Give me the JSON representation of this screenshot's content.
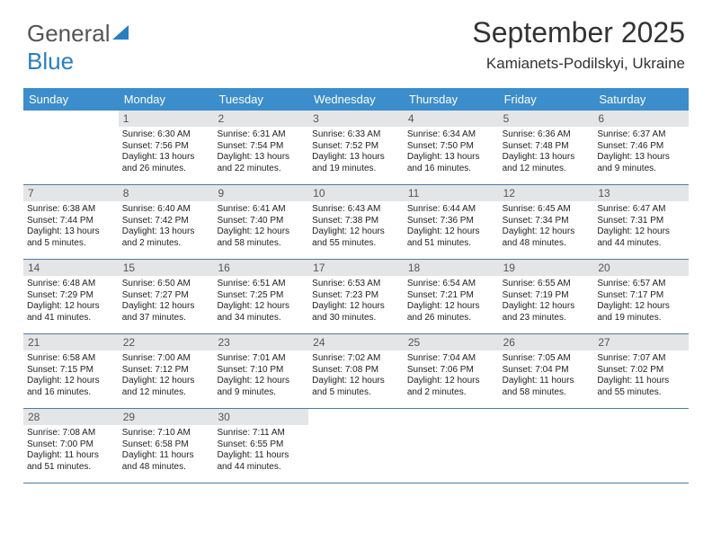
{
  "brand": {
    "name_gray": "General",
    "name_blue": "Blue"
  },
  "title": "September 2025",
  "location": "Kamianets-Podilskyi, Ukraine",
  "colors": {
    "header_bg": "#3c8dcc",
    "header_text": "#ffffff",
    "daynum_bg": "#e4e5e6",
    "daynum_text": "#555555",
    "border": "#4a7ca5",
    "body_text": "#222222",
    "title_text": "#333333",
    "brand_gray": "#555555",
    "brand_blue": "#2a7fbf",
    "background": "#ffffff"
  },
  "day_names": [
    "Sunday",
    "Monday",
    "Tuesday",
    "Wednesday",
    "Thursday",
    "Friday",
    "Saturday"
  ],
  "weeks": [
    [
      {
        "day": "",
        "sunrise": "",
        "sunset": "",
        "daylight": ""
      },
      {
        "day": "1",
        "sunrise": "Sunrise: 6:30 AM",
        "sunset": "Sunset: 7:56 PM",
        "daylight": "Daylight: 13 hours and 26 minutes."
      },
      {
        "day": "2",
        "sunrise": "Sunrise: 6:31 AM",
        "sunset": "Sunset: 7:54 PM",
        "daylight": "Daylight: 13 hours and 22 minutes."
      },
      {
        "day": "3",
        "sunrise": "Sunrise: 6:33 AM",
        "sunset": "Sunset: 7:52 PM",
        "daylight": "Daylight: 13 hours and 19 minutes."
      },
      {
        "day": "4",
        "sunrise": "Sunrise: 6:34 AM",
        "sunset": "Sunset: 7:50 PM",
        "daylight": "Daylight: 13 hours and 16 minutes."
      },
      {
        "day": "5",
        "sunrise": "Sunrise: 6:36 AM",
        "sunset": "Sunset: 7:48 PM",
        "daylight": "Daylight: 13 hours and 12 minutes."
      },
      {
        "day": "6",
        "sunrise": "Sunrise: 6:37 AM",
        "sunset": "Sunset: 7:46 PM",
        "daylight": "Daylight: 13 hours and 9 minutes."
      }
    ],
    [
      {
        "day": "7",
        "sunrise": "Sunrise: 6:38 AM",
        "sunset": "Sunset: 7:44 PM",
        "daylight": "Daylight: 13 hours and 5 minutes."
      },
      {
        "day": "8",
        "sunrise": "Sunrise: 6:40 AM",
        "sunset": "Sunset: 7:42 PM",
        "daylight": "Daylight: 13 hours and 2 minutes."
      },
      {
        "day": "9",
        "sunrise": "Sunrise: 6:41 AM",
        "sunset": "Sunset: 7:40 PM",
        "daylight": "Daylight: 12 hours and 58 minutes."
      },
      {
        "day": "10",
        "sunrise": "Sunrise: 6:43 AM",
        "sunset": "Sunset: 7:38 PM",
        "daylight": "Daylight: 12 hours and 55 minutes."
      },
      {
        "day": "11",
        "sunrise": "Sunrise: 6:44 AM",
        "sunset": "Sunset: 7:36 PM",
        "daylight": "Daylight: 12 hours and 51 minutes."
      },
      {
        "day": "12",
        "sunrise": "Sunrise: 6:45 AM",
        "sunset": "Sunset: 7:34 PM",
        "daylight": "Daylight: 12 hours and 48 minutes."
      },
      {
        "day": "13",
        "sunrise": "Sunrise: 6:47 AM",
        "sunset": "Sunset: 7:31 PM",
        "daylight": "Daylight: 12 hours and 44 minutes."
      }
    ],
    [
      {
        "day": "14",
        "sunrise": "Sunrise: 6:48 AM",
        "sunset": "Sunset: 7:29 PM",
        "daylight": "Daylight: 12 hours and 41 minutes."
      },
      {
        "day": "15",
        "sunrise": "Sunrise: 6:50 AM",
        "sunset": "Sunset: 7:27 PM",
        "daylight": "Daylight: 12 hours and 37 minutes."
      },
      {
        "day": "16",
        "sunrise": "Sunrise: 6:51 AM",
        "sunset": "Sunset: 7:25 PM",
        "daylight": "Daylight: 12 hours and 34 minutes."
      },
      {
        "day": "17",
        "sunrise": "Sunrise: 6:53 AM",
        "sunset": "Sunset: 7:23 PM",
        "daylight": "Daylight: 12 hours and 30 minutes."
      },
      {
        "day": "18",
        "sunrise": "Sunrise: 6:54 AM",
        "sunset": "Sunset: 7:21 PM",
        "daylight": "Daylight: 12 hours and 26 minutes."
      },
      {
        "day": "19",
        "sunrise": "Sunrise: 6:55 AM",
        "sunset": "Sunset: 7:19 PM",
        "daylight": "Daylight: 12 hours and 23 minutes."
      },
      {
        "day": "20",
        "sunrise": "Sunrise: 6:57 AM",
        "sunset": "Sunset: 7:17 PM",
        "daylight": "Daylight: 12 hours and 19 minutes."
      }
    ],
    [
      {
        "day": "21",
        "sunrise": "Sunrise: 6:58 AM",
        "sunset": "Sunset: 7:15 PM",
        "daylight": "Daylight: 12 hours and 16 minutes."
      },
      {
        "day": "22",
        "sunrise": "Sunrise: 7:00 AM",
        "sunset": "Sunset: 7:12 PM",
        "daylight": "Daylight: 12 hours and 12 minutes."
      },
      {
        "day": "23",
        "sunrise": "Sunrise: 7:01 AM",
        "sunset": "Sunset: 7:10 PM",
        "daylight": "Daylight: 12 hours and 9 minutes."
      },
      {
        "day": "24",
        "sunrise": "Sunrise: 7:02 AM",
        "sunset": "Sunset: 7:08 PM",
        "daylight": "Daylight: 12 hours and 5 minutes."
      },
      {
        "day": "25",
        "sunrise": "Sunrise: 7:04 AM",
        "sunset": "Sunset: 7:06 PM",
        "daylight": "Daylight: 12 hours and 2 minutes."
      },
      {
        "day": "26",
        "sunrise": "Sunrise: 7:05 AM",
        "sunset": "Sunset: 7:04 PM",
        "daylight": "Daylight: 11 hours and 58 minutes."
      },
      {
        "day": "27",
        "sunrise": "Sunrise: 7:07 AM",
        "sunset": "Sunset: 7:02 PM",
        "daylight": "Daylight: 11 hours and 55 minutes."
      }
    ],
    [
      {
        "day": "28",
        "sunrise": "Sunrise: 7:08 AM",
        "sunset": "Sunset: 7:00 PM",
        "daylight": "Daylight: 11 hours and 51 minutes."
      },
      {
        "day": "29",
        "sunrise": "Sunrise: 7:10 AM",
        "sunset": "Sunset: 6:58 PM",
        "daylight": "Daylight: 11 hours and 48 minutes."
      },
      {
        "day": "30",
        "sunrise": "Sunrise: 7:11 AM",
        "sunset": "Sunset: 6:55 PM",
        "daylight": "Daylight: 11 hours and 44 minutes."
      },
      {
        "day": "",
        "sunrise": "",
        "sunset": "",
        "daylight": ""
      },
      {
        "day": "",
        "sunrise": "",
        "sunset": "",
        "daylight": ""
      },
      {
        "day": "",
        "sunrise": "",
        "sunset": "",
        "daylight": ""
      },
      {
        "day": "",
        "sunrise": "",
        "sunset": "",
        "daylight": ""
      }
    ]
  ]
}
